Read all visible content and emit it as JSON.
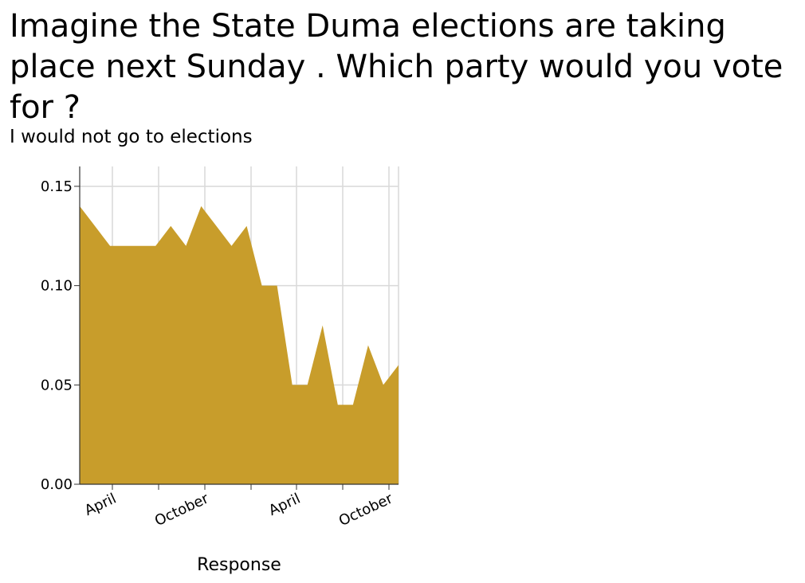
{
  "chart_data": {
    "type": "area",
    "title": "Imagine the State Duma elections are taking place next Sunday . Which party would you vote for ?",
    "subtitle": "I would not go to elections",
    "xlabel": "Response",
    "ylabel": "",
    "ylim": [
      0,
      0.16
    ],
    "yticks": [
      "0.00",
      "0.05",
      "0.10",
      "0.15"
    ],
    "xticks": [
      "April",
      "October",
      "April",
      "October"
    ],
    "series": [
      {
        "values": [
          0.14,
          0.13,
          0.12,
          0.12,
          0.12,
          0.12,
          0.13,
          0.12,
          0.14,
          0.13,
          0.12,
          0.13,
          0.1,
          0.1,
          0.05,
          0.05,
          0.08,
          0.04,
          0.04,
          0.07,
          0.05,
          0.06
        ]
      }
    ],
    "fill_color": "#c89d2b",
    "grid": true
  }
}
